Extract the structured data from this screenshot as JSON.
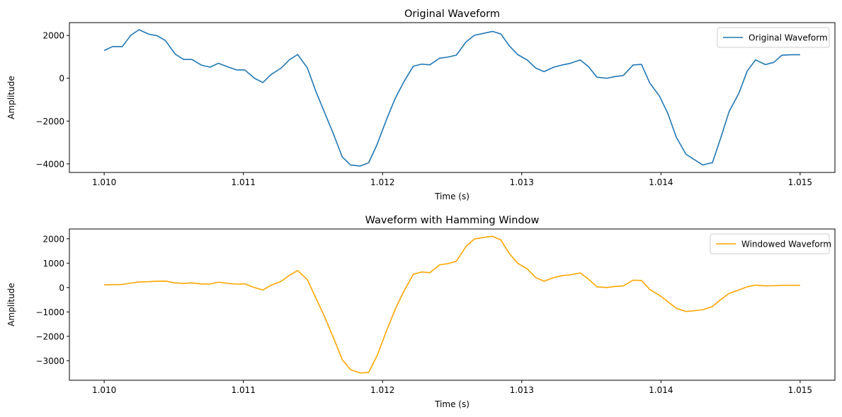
{
  "chart_data": [
    {
      "type": "line",
      "title": "Original Waveform",
      "xlabel": "Time (s)",
      "ylabel": "Amplitude",
      "xlim": [
        1.00975,
        1.01525
      ],
      "ylim": [
        -4400,
        2600
      ],
      "xticks": [
        1.01,
        1.011,
        1.012,
        1.013,
        1.014,
        1.015
      ],
      "xtick_labels": [
        "1.010",
        "1.011",
        "1.012",
        "1.013",
        "1.014",
        "1.015"
      ],
      "yticks": [
        -4000,
        -2000,
        0,
        2000
      ],
      "ytick_labels": [
        "−4000",
        "−2000",
        "0",
        "2000"
      ],
      "legend_position": "top-right",
      "grid": false,
      "series": [
        {
          "name": "Original Waveform",
          "color": "#1f77b4",
          "x": [
            1.01,
            1.01006,
            1.01013,
            1.01019,
            1.01025,
            1.01032,
            1.01038,
            1.01044,
            1.01051,
            1.01057,
            1.01063,
            1.0107,
            1.01076,
            1.01082,
            1.01089,
            1.01095,
            1.01101,
            1.01108,
            1.01114,
            1.0112,
            1.01127,
            1.01133,
            1.01139,
            1.01146,
            1.01152,
            1.01158,
            1.01165,
            1.01171,
            1.01177,
            1.01184,
            1.0119,
            1.01196,
            1.01203,
            1.01209,
            1.01215,
            1.01222,
            1.01228,
            1.01234,
            1.01241,
            1.01247,
            1.01253,
            1.0126,
            1.01266,
            1.01272,
            1.01279,
            1.01285,
            1.01291,
            1.01297,
            1.01304,
            1.0131,
            1.01316,
            1.01323,
            1.01329,
            1.01335,
            1.01342,
            1.01348,
            1.01354,
            1.01361,
            1.01367,
            1.01373,
            1.0138,
            1.01386,
            1.01392,
            1.01399,
            1.01405,
            1.01411,
            1.01418,
            1.01424,
            1.0143,
            1.01437,
            1.01443,
            1.01449,
            1.01456,
            1.01462,
            1.01468,
            1.01475,
            1.01481,
            1.01487,
            1.01494,
            1.015
          ],
          "y": [
            1300,
            1480,
            1480,
            2000,
            2270,
            2060,
            1990,
            1760,
            1130,
            880,
            880,
            610,
            520,
            700,
            530,
            390,
            390,
            0,
            -200,
            180,
            470,
            860,
            1110,
            480,
            -600,
            -1550,
            -2650,
            -3670,
            -4050,
            -4100,
            -3950,
            -3100,
            -1900,
            -950,
            -200,
            560,
            660,
            630,
            940,
            990,
            1080,
            1700,
            2010,
            2090,
            2190,
            2070,
            1520,
            1110,
            850,
            480,
            310,
            520,
            620,
            700,
            860,
            540,
            50,
            0,
            80,
            130,
            620,
            650,
            -220,
            -840,
            -1650,
            -2750,
            -3550,
            -3800,
            -4050,
            -3940,
            -2780,
            -1550,
            -700,
            340,
            860,
            640,
            740,
            1080,
            1100,
            1100
          ]
        }
      ]
    },
    {
      "type": "line",
      "title": "Waveform with Hamming Window",
      "xlabel": "Time (s)",
      "ylabel": "Amplitude",
      "xlim": [
        1.00975,
        1.01525
      ],
      "ylim": [
        -3800,
        2400
      ],
      "xticks": [
        1.01,
        1.011,
        1.012,
        1.013,
        1.014,
        1.015
      ],
      "xtick_labels": [
        "1.010",
        "1.011",
        "1.012",
        "1.013",
        "1.014",
        "1.015"
      ],
      "yticks": [
        -3000,
        -2000,
        -1000,
        0,
        1000,
        2000
      ],
      "ytick_labels": [
        "−3000",
        "−2000",
        "−1000",
        "0",
        "1000",
        "2000"
      ],
      "legend_position": "top-right",
      "grid": false,
      "series": [
        {
          "name": "Windowed Waveform",
          "color": "#ffa500",
          "x": [
            1.01,
            1.01006,
            1.01013,
            1.01019,
            1.01025,
            1.01032,
            1.01038,
            1.01044,
            1.01051,
            1.01057,
            1.01063,
            1.0107,
            1.01076,
            1.01082,
            1.01089,
            1.01095,
            1.01101,
            1.01108,
            1.01114,
            1.0112,
            1.01127,
            1.01133,
            1.01139,
            1.01146,
            1.01152,
            1.01158,
            1.01165,
            1.01171,
            1.01177,
            1.01184,
            1.0119,
            1.01196,
            1.01203,
            1.01209,
            1.01215,
            1.01222,
            1.01228,
            1.01234,
            1.01241,
            1.01247,
            1.01253,
            1.0126,
            1.01266,
            1.01272,
            1.01279,
            1.01285,
            1.01291,
            1.01297,
            1.01304,
            1.0131,
            1.01316,
            1.01323,
            1.01329,
            1.01335,
            1.01342,
            1.01348,
            1.01354,
            1.01361,
            1.01367,
            1.01373,
            1.0138,
            1.01386,
            1.01392,
            1.01399,
            1.01405,
            1.01411,
            1.01418,
            1.01424,
            1.0143,
            1.01437,
            1.01443,
            1.01449,
            1.01456,
            1.01462,
            1.01468,
            1.01475,
            1.01481,
            1.01487,
            1.01494,
            1.015
          ],
          "y": [
            105,
            120,
            125,
            180,
            230,
            240,
            260,
            265,
            190,
            170,
            190,
            150,
            140,
            220,
            170,
            140,
            150,
            0,
            -100,
            100,
            250,
            500,
            700,
            320,
            -420,
            -1150,
            -2100,
            -2950,
            -3370,
            -3500,
            -3480,
            -2800,
            -1750,
            -900,
            -190,
            540,
            640,
            610,
            930,
            980,
            1080,
            1690,
            1990,
            2050,
            2100,
            1950,
            1400,
            1000,
            760,
            410,
            260,
            410,
            490,
            520,
            600,
            340,
            30,
            0,
            45,
            70,
            300,
            290,
            -80,
            -320,
            -580,
            -850,
            -980,
            -950,
            -910,
            -780,
            -490,
            -240,
            -100,
            30,
            100,
            70,
            75,
            90,
            90,
            90
          ]
        }
      ]
    }
  ]
}
